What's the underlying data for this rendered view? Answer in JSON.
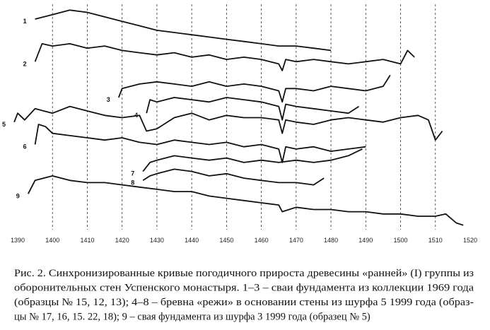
{
  "chart_data": {
    "type": "line",
    "xlim": [
      1390,
      1520
    ],
    "xticks": [
      1390,
      1400,
      1410,
      1420,
      1430,
      1440,
      1450,
      1460,
      1470,
      1480,
      1490,
      1500,
      1510,
      1520
    ],
    "ylim": [
      0,
      100
    ],
    "grid": true,
    "series": [
      {
        "name": "1",
        "color": "#111111",
        "x": [
          1395,
          1400,
          1405,
          1410,
          1415,
          1420,
          1425,
          1430,
          1435,
          1440,
          1445,
          1450,
          1455,
          1460,
          1465,
          1470,
          1475,
          1480
        ],
        "values": [
          94,
          96,
          98,
          97,
          95,
          93,
          91,
          89,
          88,
          87,
          86,
          85,
          84,
          83,
          82,
          82,
          81,
          80
        ]
      },
      {
        "name": "2",
        "color": "#111111",
        "x": [
          1395,
          1397,
          1400,
          1405,
          1410,
          1415,
          1420,
          1425,
          1430,
          1435,
          1440,
          1445,
          1450,
          1455,
          1460,
          1465,
          1466,
          1467,
          1470,
          1475,
          1480,
          1485,
          1490,
          1495,
          1500,
          1502,
          1504
        ],
        "values": [
          75,
          83,
          82,
          83,
          81,
          82,
          80,
          79,
          78,
          79,
          77,
          78,
          76,
          77,
          76,
          74,
          71,
          76,
          75,
          76,
          75,
          74,
          75,
          76,
          74,
          80,
          77
        ]
      },
      {
        "name": "3",
        "color": "#111111",
        "x": [
          1419,
          1420,
          1425,
          1430,
          1435,
          1440,
          1445,
          1450,
          1455,
          1460,
          1465,
          1466,
          1467,
          1470,
          1475,
          1480,
          1485,
          1490,
          1495,
          1497
        ],
        "values": [
          59,
          63,
          65,
          66,
          65,
          64,
          66,
          64,
          65,
          64,
          62,
          57,
          63,
          63,
          62,
          64,
          63,
          62,
          64,
          69
        ]
      },
      {
        "name": "4",
        "color": "#111111",
        "x": [
          1427,
          1428,
          1430,
          1435,
          1440,
          1445,
          1450,
          1455,
          1460,
          1465,
          1466,
          1467,
          1470,
          1475,
          1480,
          1485,
          1488
        ],
        "values": [
          52,
          58,
          57,
          59,
          58,
          57,
          59,
          58,
          57,
          55,
          49,
          56,
          55,
          54,
          53,
          52,
          55
        ]
      },
      {
        "name": "5",
        "color": "#111111",
        "x": [
          1389,
          1390,
          1392,
          1395,
          1400,
          1405,
          1410,
          1415,
          1420,
          1425,
          1427,
          1430,
          1435,
          1440,
          1445,
          1450,
          1455,
          1460,
          1465,
          1466,
          1467,
          1470,
          1475,
          1480,
          1485,
          1490,
          1495,
          1500,
          1505,
          1508,
          1510,
          1512
        ],
        "values": [
          48,
          52,
          49,
          54,
          52,
          55,
          53,
          51,
          50,
          51,
          44,
          45,
          50,
          52,
          49,
          51,
          50,
          50,
          49,
          43,
          49,
          48,
          47,
          49,
          50,
          49,
          48,
          50,
          51,
          49,
          40,
          44
        ]
      },
      {
        "name": "6",
        "color": "#111111",
        "x": [
          1395,
          1396,
          1398,
          1400,
          1405,
          1410,
          1415,
          1420,
          1425,
          1430,
          1435,
          1440,
          1445,
          1450,
          1455,
          1460,
          1465,
          1466,
          1467,
          1470,
          1475,
          1480,
          1485,
          1490
        ],
        "values": [
          38,
          47,
          46,
          43,
          42,
          41,
          40,
          41,
          39,
          38,
          40,
          39,
          38,
          39,
          37,
          38,
          36,
          30,
          37,
          36,
          37,
          35,
          36,
          37
        ]
      },
      {
        "name": "7",
        "color": "#111111",
        "x": [
          1426,
          1428,
          1430,
          1435,
          1440,
          1445,
          1450,
          1455,
          1460,
          1465,
          1470,
          1475,
          1480,
          1485,
          1489
        ],
        "values": [
          26,
          30,
          31,
          33,
          32,
          31,
          32,
          30,
          31,
          30,
          31,
          30,
          31,
          33,
          36
        ]
      },
      {
        "name": "8",
        "color": "#111111",
        "x": [
          1426,
          1428,
          1430,
          1435,
          1440,
          1445,
          1450,
          1455,
          1460,
          1465,
          1470,
          1475,
          1478
        ],
        "values": [
          22,
          24,
          25,
          27,
          26,
          24,
          25,
          23,
          22,
          21,
          21,
          20,
          23
        ]
      },
      {
        "name": "9",
        "color": "#111111",
        "x": [
          1393,
          1395,
          1400,
          1405,
          1410,
          1415,
          1420,
          1425,
          1430,
          1435,
          1440,
          1445,
          1450,
          1455,
          1460,
          1465,
          1466,
          1470,
          1475,
          1480,
          1485,
          1490,
          1495,
          1500,
          1505,
          1510,
          1513,
          1516,
          1518
        ],
        "values": [
          16,
          22,
          24,
          22,
          21,
          21,
          20,
          19,
          18,
          17,
          17,
          15,
          14,
          13,
          12,
          11,
          8,
          10,
          9,
          9,
          8,
          8,
          7,
          7,
          6,
          6,
          7,
          3,
          2
        ]
      }
    ],
    "caption": [
      "Рис. 2. Синхронизированные кривые погодичного прироста древесины «ранней» (I) группы из",
      "оборонительных стен Успенского монастыря. 1–3 – сваи фундамента из коллекции 1969 года",
      "(образцы № 15, 12, 13); 4–8 – бревна «режи» в основании стены из шурфа 5 1999 года (образ-",
      "цы № 17, 16, 15. 22, 18); 9 – свая фундамента из шурфа 3 1999 года (образец № 5)"
    ]
  }
}
